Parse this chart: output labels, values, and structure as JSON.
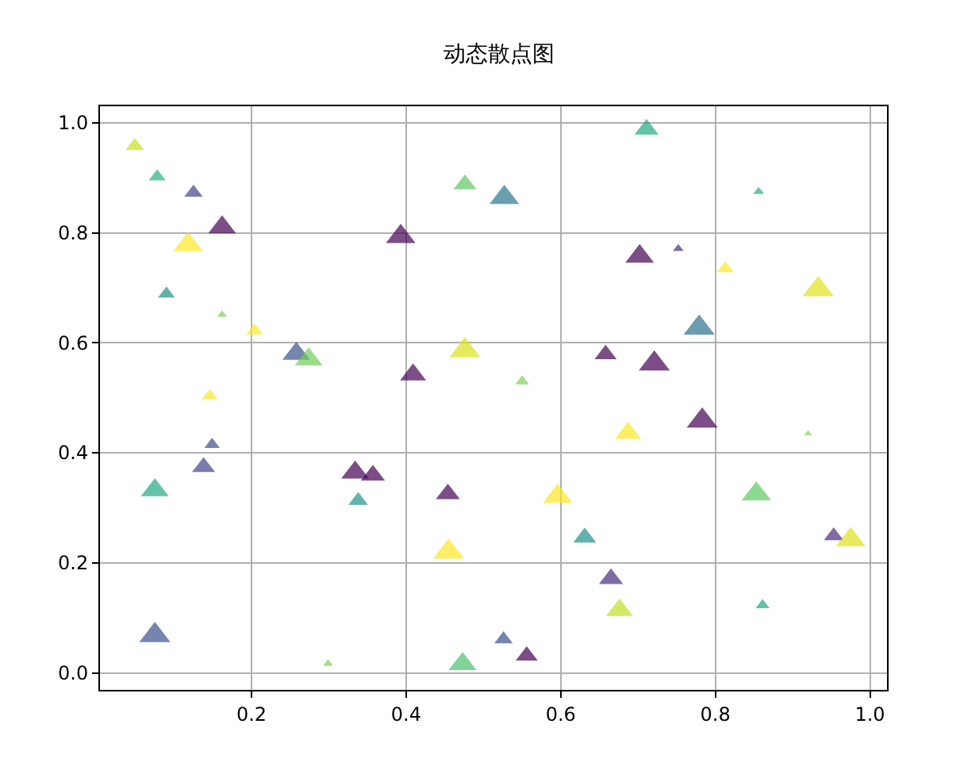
{
  "chart_data": {
    "type": "bubble",
    "title": "动态散点图",
    "marker": "triangle",
    "grid": true,
    "xlim": [
      0.004,
      1.022
    ],
    "ylim": [
      -0.031,
      1.03
    ],
    "xticks": [
      0.2,
      0.4,
      0.6,
      0.8,
      {
        "value": 1,
        "label": "1.0"
      }
    ],
    "yticks": [
      {
        "value": 0,
        "label": "0.0"
      },
      0.2,
      0.4,
      0.6,
      0.8,
      {
        "value": 1,
        "label": "1.0"
      }
    ],
    "x": [
      0.049,
      0.078,
      0.125,
      0.162,
      0.118,
      0.09,
      0.162,
      0.204,
      0.258,
      0.274,
      0.409,
      0.393,
      0.476,
      0.476,
      0.711,
      0.527,
      0.856,
      0.702,
      0.752,
      0.813,
      0.933,
      0.779,
      0.658,
      0.721,
      0.55,
      0.783,
      0.687,
      0.92,
      0.596,
      0.853,
      0.631,
      0.953,
      0.975,
      0.665,
      0.676,
      0.861,
      0.526,
      0.556,
      0.473,
      0.146,
      0.149,
      0.138,
      0.075,
      0.334,
      0.357,
      0.338,
      0.454,
      0.455,
      0.075,
      0.299
    ],
    "values": [
      0.958,
      0.902,
      0.873,
      0.81,
      0.778,
      0.689,
      0.651,
      0.622,
      0.58,
      0.57,
      0.542,
      0.793,
      0.888,
      0.586,
      0.988,
      0.864,
      0.875,
      0.757,
      0.771,
      0.735,
      0.697,
      0.627,
      0.579,
      0.562,
      0.53,
      0.458,
      0.436,
      0.435,
      0.321,
      0.325,
      0.246,
      0.249,
      0.242,
      0.171,
      0.114,
      0.123,
      0.061,
      0.031,
      0.016,
      0.504,
      0.415,
      0.374,
      0.332,
      0.364,
      0.359,
      0.313,
      0.325,
      0.22,
      0.068,
      0.017
    ],
    "sizes": [
      0.35,
      0.3,
      0.35,
      0.8,
      0.9,
      0.3,
      0.1,
      0.3,
      0.8,
      0.8,
      0.7,
      0.9,
      0.55,
      1.0,
      0.6,
      0.9,
      0.12,
      0.85,
      0.12,
      0.3,
      1.0,
      1.0,
      0.5,
      1.0,
      0.2,
      1.0,
      0.7,
      0.06,
      0.9,
      0.9,
      0.55,
      0.4,
      0.9,
      0.6,
      0.75,
      0.2,
      0.35,
      0.5,
      0.8,
      0.25,
      0.25,
      0.55,
      0.8,
      0.8,
      0.6,
      0.4,
      0.6,
      1.0,
      1.0,
      0.1
    ],
    "colors": [
      "#c8e020",
      "#2ab07f",
      "#414487",
      "#440154",
      "#fde725",
      "#21918c",
      "#7ad151",
      "#fde725",
      "#3b528b",
      "#6ece58",
      "#440154",
      "#440154",
      "#5ec962",
      "#d8e219",
      "#22a884",
      "#2a788e",
      "#22a884",
      "#440154",
      "#482878",
      "#fde725",
      "#dde318",
      "#2c728e",
      "#440154",
      "#440154",
      "#7ad151",
      "#440154",
      "#fde725",
      "#7ad151",
      "#fde725",
      "#5ec962",
      "#21918c",
      "#472d7b",
      "#dde318",
      "#472f7d",
      "#bddf26",
      "#22a884",
      "#3b528b",
      "#440154",
      "#4ac16d",
      "#fde725",
      "#3b528b",
      "#414487",
      "#22a884",
      "#440154",
      "#440154",
      "#21918c",
      "#440154",
      "#fde725",
      "#3b528b",
      "#7ad151"
    ]
  }
}
